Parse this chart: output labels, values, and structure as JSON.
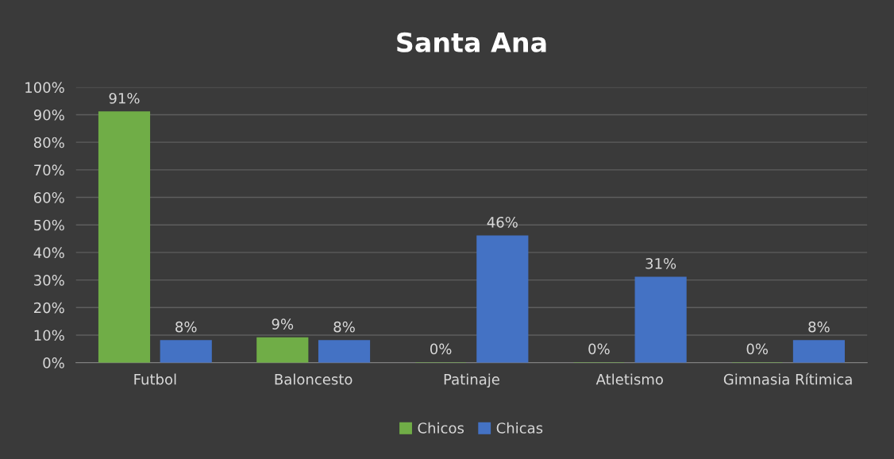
{
  "chart_data": {
    "type": "bar",
    "title": "Santa Ana",
    "categories": [
      "Futbol",
      "Baloncesto",
      "Patinaje",
      "Atletismo",
      "Gimnasia Rítimica"
    ],
    "series": [
      {
        "name": "Chicos",
        "color": "#70ad47",
        "values": [
          91,
          9,
          0,
          0,
          0
        ],
        "value_labels": [
          "91%",
          "9%",
          "0%",
          "0%",
          "0%"
        ]
      },
      {
        "name": "Chicas",
        "color": "#4472c4",
        "values": [
          8,
          8,
          46,
          31,
          8
        ],
        "value_labels": [
          "8%",
          "8%",
          "46%",
          "31%",
          "8%"
        ]
      }
    ],
    "ylim": [
      0,
      100
    ],
    "yticks": [
      {
        "value": 0,
        "label": "0%"
      },
      {
        "value": 10,
        "label": "10%"
      },
      {
        "value": 20,
        "label": "20%"
      },
      {
        "value": 30,
        "label": "30%"
      },
      {
        "value": 40,
        "label": "40%"
      },
      {
        "value": 50,
        "label": "50%"
      },
      {
        "value": 60,
        "label": "60%"
      },
      {
        "value": 70,
        "label": "70%"
      },
      {
        "value": 80,
        "label": "80%"
      },
      {
        "value": 90,
        "label": "90%"
      },
      {
        "value": 100,
        "label": "100%"
      }
    ],
    "grid": "y",
    "legend": "bottom"
  }
}
